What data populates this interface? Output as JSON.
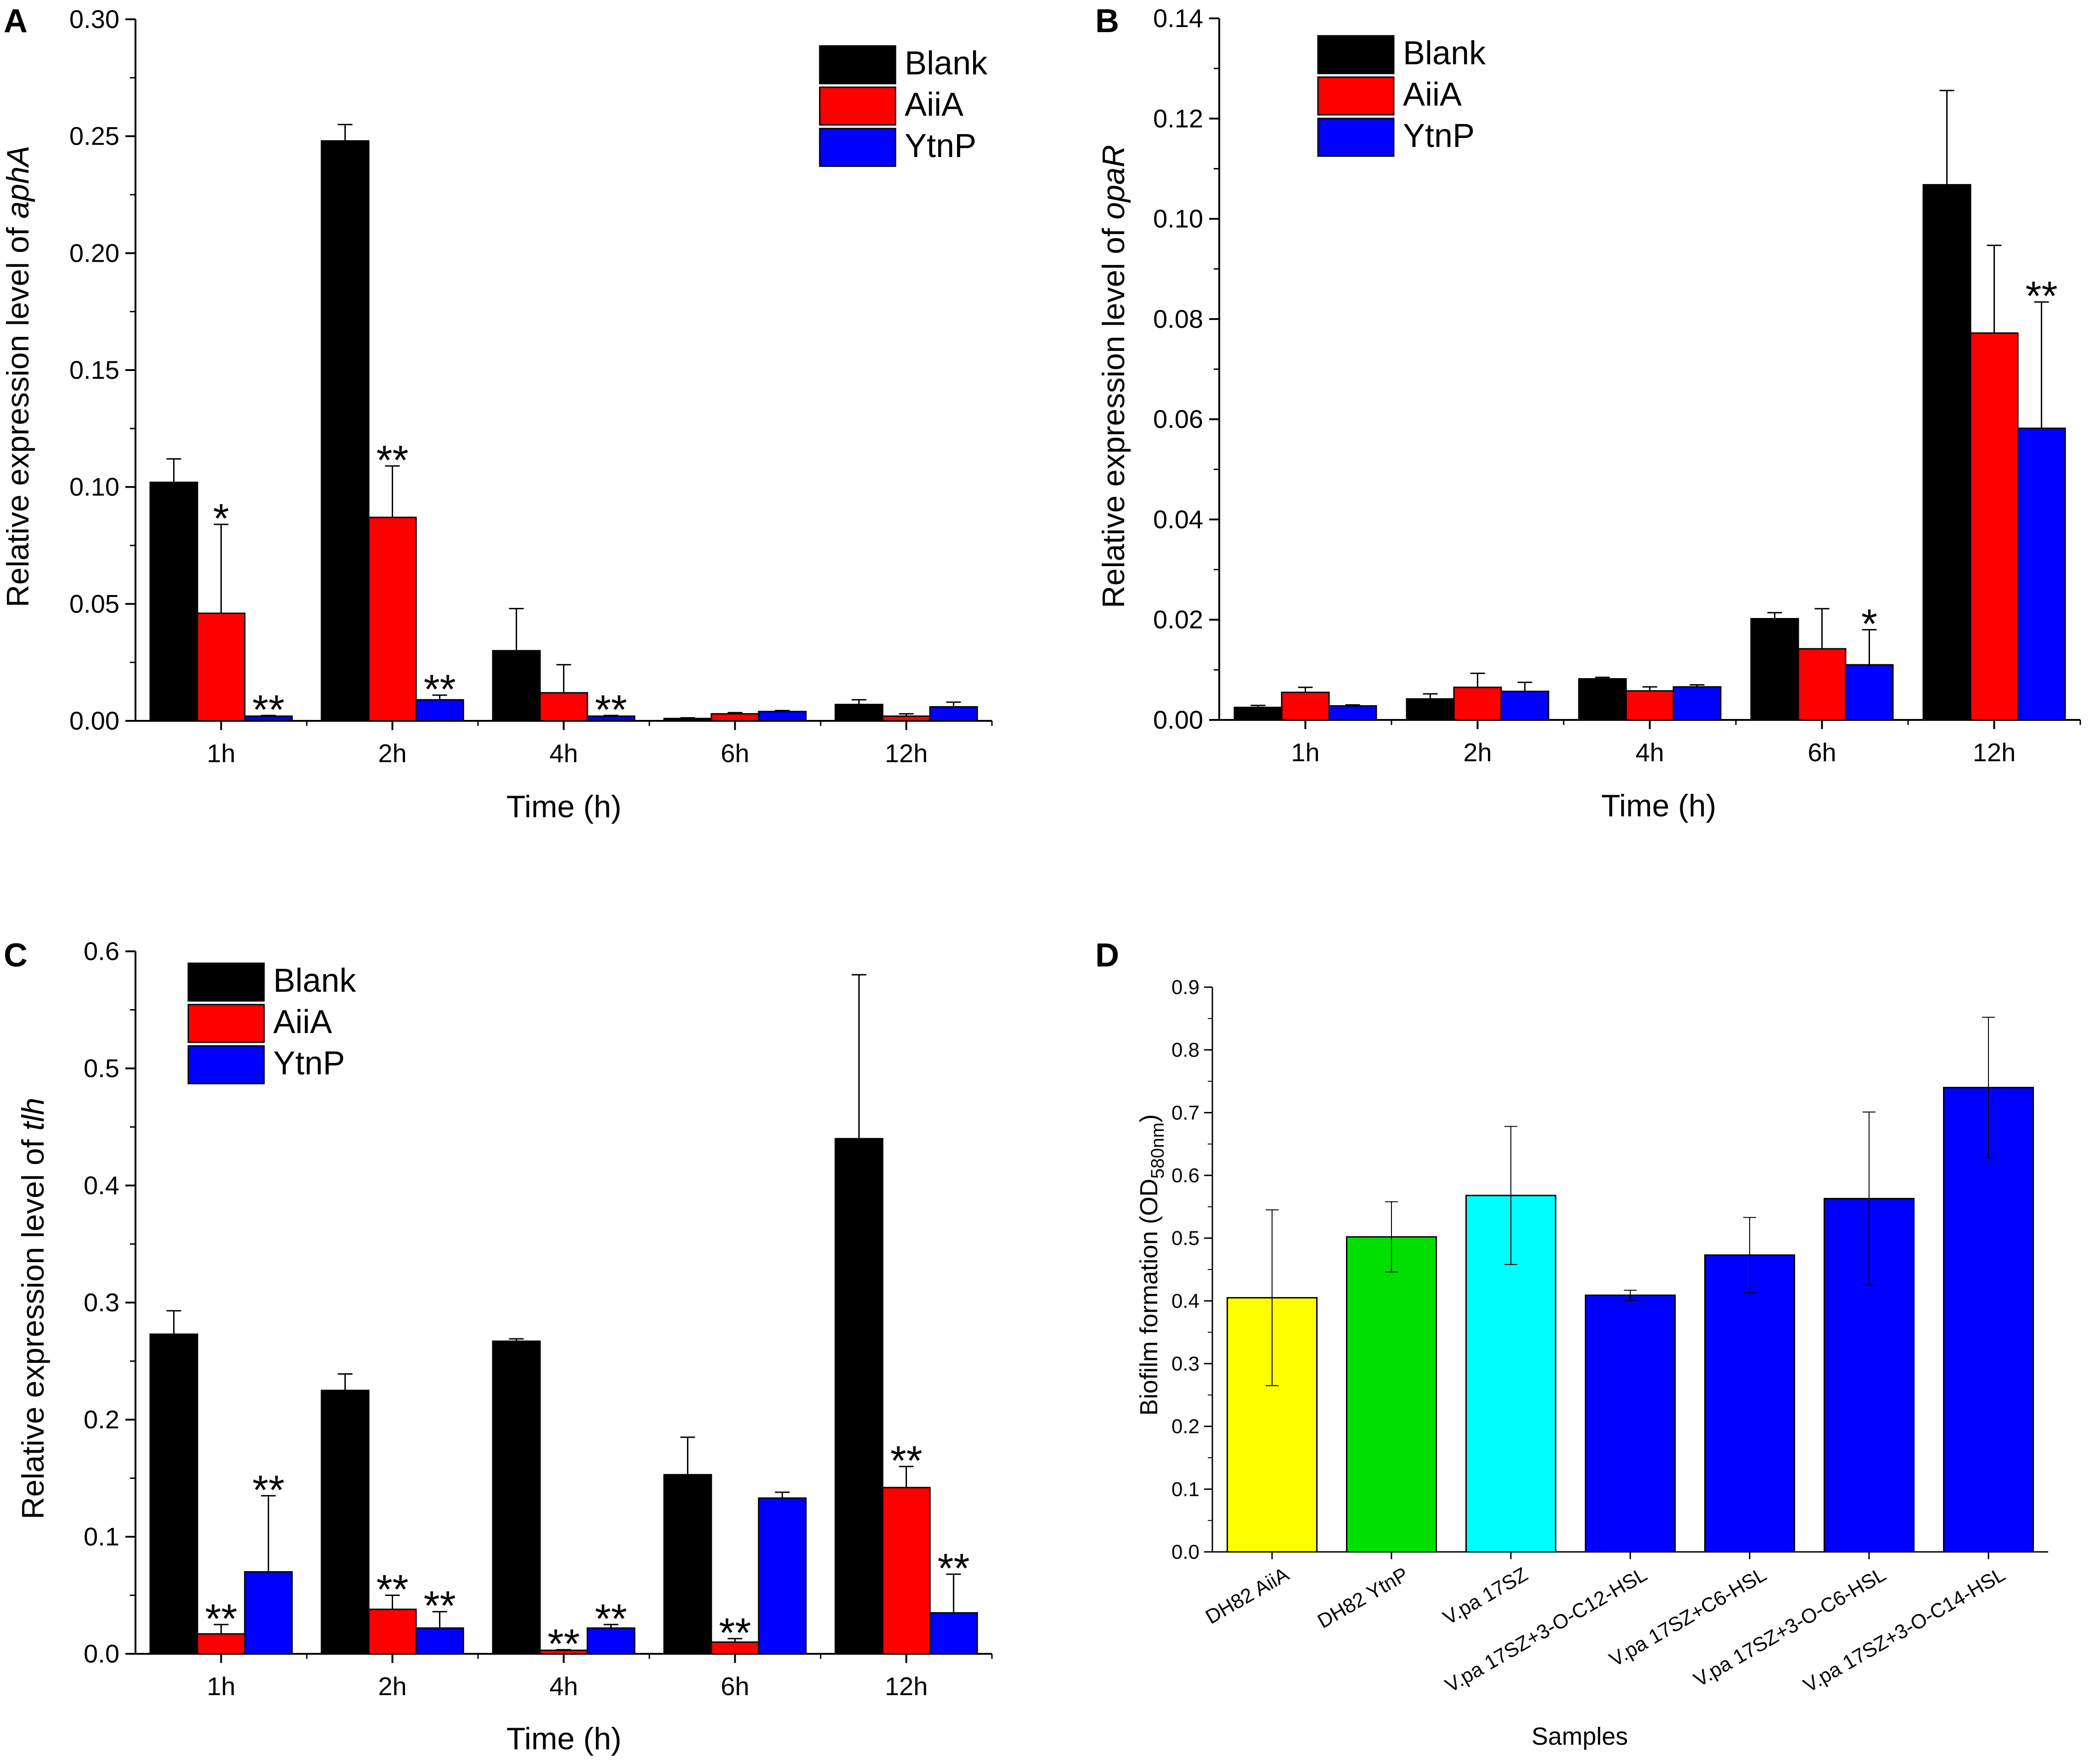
{
  "chart_data": [
    {
      "id": "A",
      "type": "bar",
      "panel_label": "A",
      "ylabel_prefix": "Relative expression level of ",
      "ylabel_gene": "aphA",
      "xlabel": "Time (h)",
      "ylim": [
        0,
        0.3
      ],
      "yticks": [
        "0.00",
        "0.05",
        "0.10",
        "0.15",
        "0.20",
        "0.25",
        "0.30"
      ],
      "categories": [
        "1h",
        "2h",
        "4h",
        "6h",
        "12h"
      ],
      "legend_position": "top-right",
      "series": [
        {
          "name": "Blank",
          "color": "#000000",
          "values": [
            0.102,
            0.248,
            0.03,
            0.001,
            0.007
          ],
          "errors": [
            0.01,
            0.007,
            0.018,
            0.0003,
            0.002
          ],
          "annotations": [
            "",
            "",
            "",
            "",
            ""
          ]
        },
        {
          "name": "AiiA",
          "color": "#ff0000",
          "values": [
            0.046,
            0.087,
            0.012,
            0.003,
            0.002
          ],
          "errors": [
            0.038,
            0.022,
            0.012,
            0.0005,
            0.001
          ],
          "annotations": [
            "*",
            "**",
            "",
            "",
            ""
          ]
        },
        {
          "name": "YtnP",
          "color": "#0000ff",
          "values": [
            0.002,
            0.009,
            0.002,
            0.004,
            0.006
          ],
          "errors": [
            0.0003,
            0.002,
            0.0003,
            0.0004,
            0.002
          ],
          "annotations": [
            "**",
            "**",
            "**",
            "",
            ""
          ]
        }
      ]
    },
    {
      "id": "B",
      "type": "bar",
      "panel_label": "B",
      "ylabel_prefix": "Relative expression level of ",
      "ylabel_gene": "opaR",
      "xlabel": "Time (h)",
      "ylim": [
        0,
        0.14
      ],
      "yticks": [
        "0.00",
        "0.02",
        "0.04",
        "0.06",
        "0.08",
        "0.10",
        "0.12",
        "0.14"
      ],
      "categories": [
        "1h",
        "2h",
        "4h",
        "6h",
        "12h"
      ],
      "legend_position": "top-left",
      "series": [
        {
          "name": "Blank",
          "color": "#000000",
          "values": [
            0.0025,
            0.0042,
            0.0082,
            0.0202,
            0.1068
          ],
          "errors": [
            0.0004,
            0.001,
            0.0003,
            0.0012,
            0.0188
          ],
          "annotations": [
            "",
            "",
            "",
            "",
            ""
          ]
        },
        {
          "name": "AiiA",
          "color": "#ff0000",
          "values": [
            0.0055,
            0.0065,
            0.0058,
            0.0142,
            0.0772
          ],
          "errors": [
            0.001,
            0.0028,
            0.0008,
            0.008,
            0.0175
          ],
          "annotations": [
            "",
            "",
            "",
            "",
            ""
          ]
        },
        {
          "name": "YtnP",
          "color": "#0000ff",
          "values": [
            0.0028,
            0.0057,
            0.0066,
            0.011,
            0.0582
          ],
          "errors": [
            0.0002,
            0.0018,
            0.0004,
            0.007,
            0.0252
          ],
          "annotations": [
            "",
            "",
            "",
            "*",
            "**"
          ]
        }
      ]
    },
    {
      "id": "C",
      "type": "bar",
      "panel_label": "C",
      "ylabel_prefix": "Relative expression level of ",
      "ylabel_gene": "tlh",
      "xlabel": "Time (h)",
      "ylim": [
        0,
        0.6
      ],
      "yticks": [
        "0.0",
        "0.1",
        "0.2",
        "0.3",
        "0.4",
        "0.5",
        "0.6"
      ],
      "categories": [
        "1h",
        "2h",
        "4h",
        "6h",
        "12h"
      ],
      "legend_position": "top-left",
      "series": [
        {
          "name": "Blank",
          "color": "#000000",
          "values": [
            0.273,
            0.225,
            0.267,
            0.153,
            0.44
          ],
          "errors": [
            0.02,
            0.014,
            0.002,
            0.032,
            0.14
          ],
          "annotations": [
            "",
            "",
            "",
            "",
            ""
          ]
        },
        {
          "name": "AiiA",
          "color": "#ff0000",
          "values": [
            0.017,
            0.038,
            0.003,
            0.01,
            0.142
          ],
          "errors": [
            0.008,
            0.012,
            0.0005,
            0.003,
            0.018
          ],
          "annotations": [
            "**",
            "**",
            "**",
            "**",
            "**"
          ]
        },
        {
          "name": "YtnP",
          "color": "#0000ff",
          "values": [
            0.07,
            0.022,
            0.022,
            0.133,
            0.035
          ],
          "errors": [
            0.065,
            0.014,
            0.003,
            0.005,
            0.033
          ],
          "annotations": [
            "**",
            "**",
            "**",
            "",
            "**"
          ]
        }
      ]
    },
    {
      "id": "D",
      "type": "bar",
      "panel_label": "D",
      "ylabel_main": "Biofilm formation (OD",
      "ylabel_sub": "580nm",
      "ylabel_end": ")",
      "xlabel": "Samples",
      "ylim": [
        0,
        0.9
      ],
      "yticks": [
        "0.0",
        "0.1",
        "0.2",
        "0.3",
        "0.4",
        "0.5",
        "0.6",
        "0.7",
        "0.8",
        "0.9"
      ],
      "categories": [
        "DH82 AiiA",
        "DH82 YtnP",
        "V.pa 17SZ",
        "V.pa 17SZ+3-O-C12-HSL",
        "V.pa 17SZ+C6-HSL",
        "V.pa 17SZ+3-O-C6-HSL",
        "V.pa 17SZ+3-O-C14-HSL"
      ],
      "values": [
        0.405,
        0.502,
        0.568,
        0.409,
        0.473,
        0.563,
        0.74
      ],
      "errors": [
        0.14,
        0.056,
        0.11,
        0.008,
        0.06,
        0.138,
        0.112
      ],
      "colors": [
        "#ffff00",
        "#00e000",
        "#00ffff",
        "#0000ff",
        "#0000ff",
        "#0000ff",
        "#0000ff"
      ]
    }
  ]
}
